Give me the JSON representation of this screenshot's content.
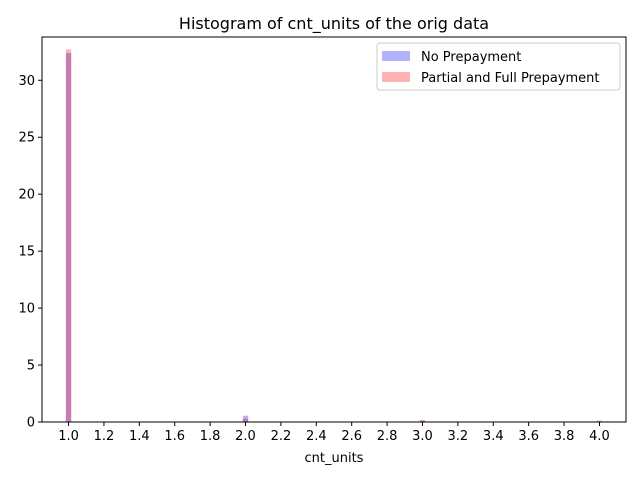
{
  "chart_data": {
    "type": "bar",
    "title": "Histogram of cnt_units of the orig data",
    "xlabel": "cnt_units",
    "ylabel": "",
    "xlim": [
      0.85,
      4.15
    ],
    "ylim": [
      0,
      33.8
    ],
    "x_ticks": [
      "1.0",
      "1.2",
      "1.4",
      "1.6",
      "1.8",
      "2.0",
      "2.2",
      "2.4",
      "2.6",
      "2.8",
      "3.0",
      "3.2",
      "3.4",
      "3.6",
      "3.8",
      "4.0"
    ],
    "y_ticks": [
      "0",
      "5",
      "10",
      "15",
      "20",
      "25",
      "30"
    ],
    "grid": false,
    "legend_position": "top-right",
    "bin_width": 0.03,
    "series": [
      {
        "name": "No Prepayment",
        "color": "#0000ff",
        "opacity": 0.3,
        "bins": [
          {
            "x": 1.0,
            "value": 32.4
          },
          {
            "x": 2.0,
            "value": 0.55
          },
          {
            "x": 3.0,
            "value": 0.12
          },
          {
            "x": 4.0,
            "value": 0.12
          }
        ]
      },
      {
        "name": "Partial and Full Prepayment",
        "color": "#ff0000",
        "opacity": 0.3,
        "bins": [
          {
            "x": 1.0,
            "value": 32.7
          },
          {
            "x": 2.0,
            "value": 0.3
          },
          {
            "x": 3.0,
            "value": 0.18
          },
          {
            "x": 4.0,
            "value": 0.05
          }
        ]
      }
    ]
  }
}
